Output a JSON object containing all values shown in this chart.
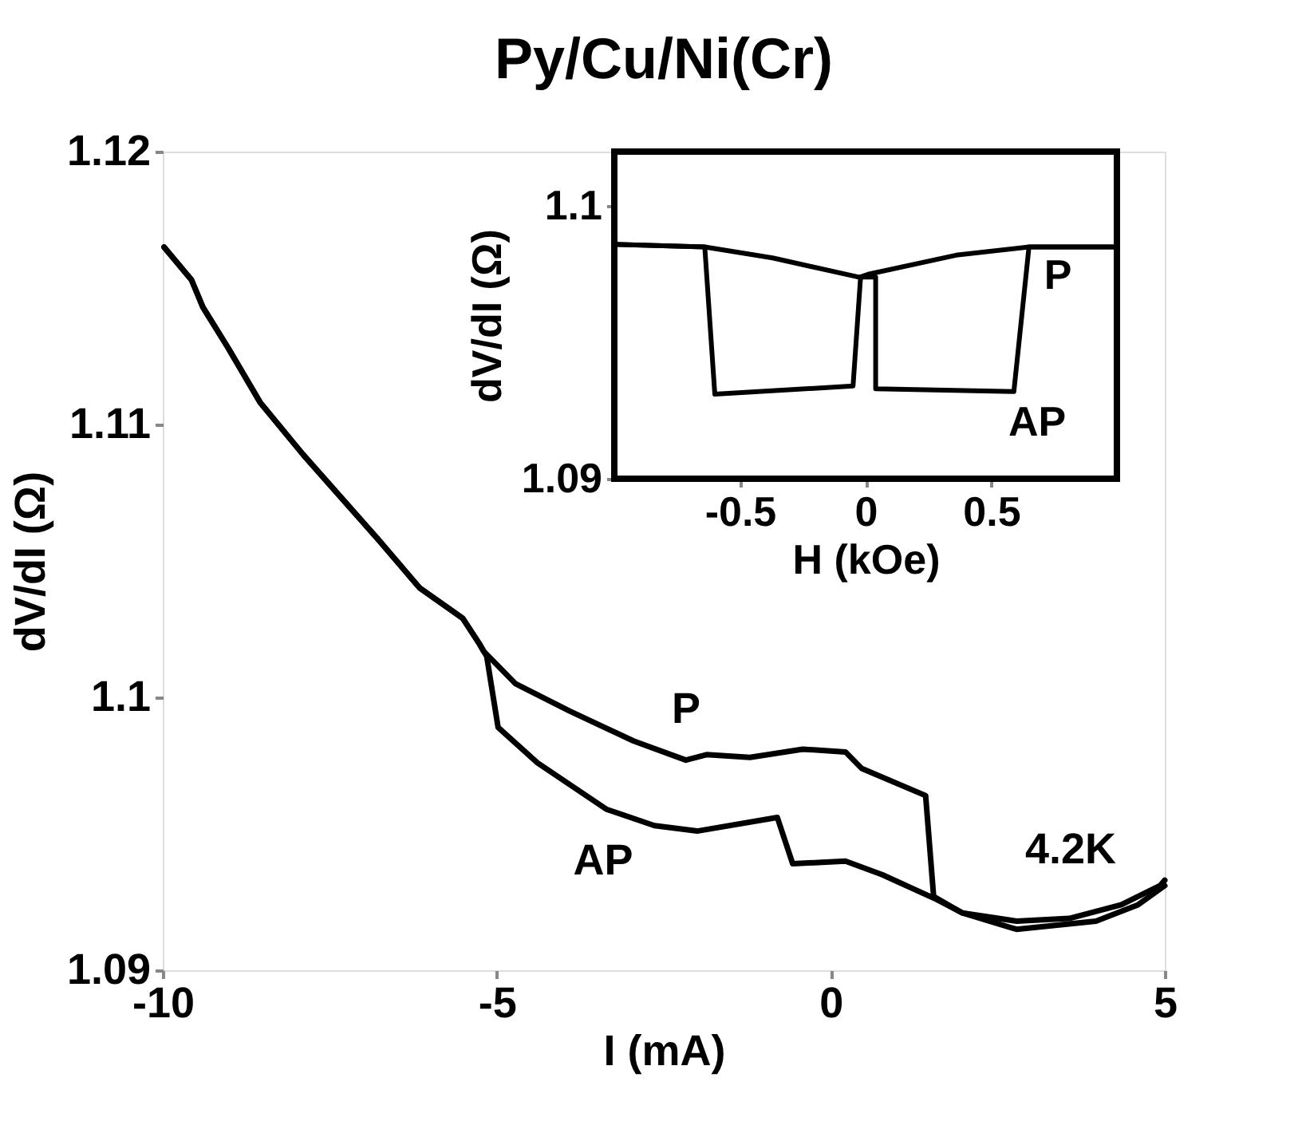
{
  "chart_data": [
    {
      "type": "line",
      "title": "Py/Cu/Ni(Cr)",
      "xlabel": "I (mA)",
      "ylabel": "dV/dI (Ω)",
      "xlim": [
        -10,
        5
      ],
      "ylim": [
        1.09,
        1.12
      ],
      "xticks": [
        -10,
        -5,
        0,
        5
      ],
      "yticks": [
        1.09,
        {
          "value": 1.1,
          "label": "1.1"
        },
        1.11,
        1.12
      ],
      "grid": false,
      "marker": "none",
      "line_style": "solid",
      "series": [
        {
          "color": "#000000",
          "x": [
            -9.98,
            -9.57,
            -9.4,
            -9.02,
            -8.54,
            -7.9,
            -7.25,
            -6.78,
            -6.15,
            -5.51,
            -5.27,
            -5.2,
            -4.72,
            -3.91,
            -2.95,
            -2.17,
            -1.86,
            -1.21,
            -0.42,
            0.22,
            0.46,
            1.42,
            1.54,
            1.97,
            2.78,
            3.57,
            4.35,
            4.93,
            5
          ],
          "values": [
            1.1165,
            1.1153,
            1.1143,
            1.1128,
            1.1108,
            1.1089,
            1.1071,
            1.1058,
            1.104,
            1.1029,
            1.102,
            1.1017,
            1.1005,
            1.0995,
            1.0984,
            1.0977,
            1.0979,
            1.0978,
            1.0981,
            1.098,
            1.0974,
            1.0964,
            1.0927,
            1.0921,
            1.0918,
            1.0919,
            1.0924,
            1.0931,
            1.0933
          ]
        },
        {
          "color": "#000000",
          "x": [
            -9.98,
            -9.57,
            -9.4,
            -9.02,
            -8.54,
            -7.9,
            -7.25,
            -6.78,
            -6.15,
            -5.51,
            -5.27,
            -5.15,
            -4.98,
            -4.39,
            -3.36,
            -2.64,
            -2.0,
            -0.8,
            -0.57,
            0.22,
            0.77,
            1.58,
            1.97,
            2.78,
            3.97,
            4.6,
            5
          ],
          "values": [
            1.1165,
            1.1153,
            1.1143,
            1.1128,
            1.1108,
            1.1089,
            1.1071,
            1.1058,
            1.104,
            1.1029,
            1.102,
            1.1015,
            1.0989,
            1.0976,
            1.0959,
            1.0953,
            1.0951,
            1.0956,
            1.0939,
            1.094,
            1.0935,
            1.0926,
            1.0921,
            1.0915,
            1.0918,
            1.0924,
            1.0931
          ]
        }
      ],
      "annotations": [
        "P",
        "AP",
        "4.2K"
      ]
    },
    {
      "type": "line",
      "xlabel": "H (kOe)",
      "ylabel": "dV/dI (Ω)",
      "xlim": [
        -1,
        1
      ],
      "ylim": [
        1.09,
        1.102
      ],
      "xticks": [
        -0.5,
        0,
        0.5
      ],
      "yticks": [
        1.09,
        {
          "value": 1.1,
          "label": "1.1"
        }
      ],
      "grid": false,
      "marker": "none",
      "line_style": "solid",
      "series": [
        {
          "color": "#000000",
          "x": [
            1.0,
            0.65,
            0.36,
            0.01,
            -0.02,
            -0.05,
            -0.6,
            -0.64,
            -1.0
          ],
          "values": [
            1.0985,
            1.0985,
            1.0982,
            1.0975,
            1.0974,
            1.0934,
            1.0931,
            1.0985,
            1.0986
          ]
        },
        {
          "color": "#000000",
          "x": [
            -1.0,
            -0.64,
            -0.37,
            -0.03,
            0.04,
            0.04,
            0.59,
            0.65,
            1.0
          ],
          "values": [
            1.0986,
            1.0985,
            1.0981,
            1.0974,
            1.0974,
            1.0933,
            1.0932,
            1.0985,
            1.0985
          ]
        }
      ],
      "annotations": [
        "P",
        "AP"
      ]
    }
  ]
}
